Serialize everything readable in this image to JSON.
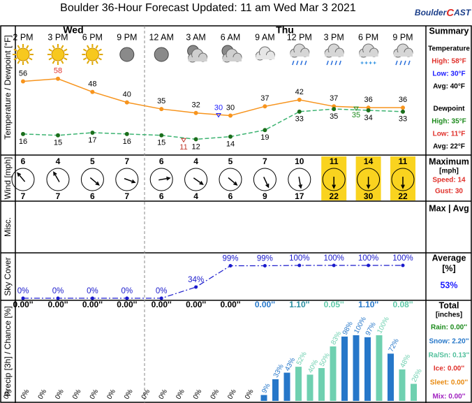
{
  "header": {
    "title": "Boulder 36-Hour Forecast Updated: 11 am Wed Mar 3 2021",
    "logo": [
      "Boulder",
      "C",
      "AST"
    ]
  },
  "summary": [
    {
      "heading": "Summary",
      "lines": [
        {
          "text": "Temperature",
          "color": "#000000"
        },
        {
          "text": "High: 58°F",
          "color": "#e0302a"
        },
        {
          "text": "Low: 30°F",
          "color": "#1a1aff"
        },
        {
          "text": "Avg: 40°F",
          "color": "#000000"
        },
        {
          "text": "Dewpoint",
          "color": "#000000"
        },
        {
          "text": "High: 35°F",
          "color": "#1b8a1b"
        },
        {
          "text": "Low: 11°F",
          "color": "#e0302a"
        },
        {
          "text": "Avg: 22°F",
          "color": "#000000"
        }
      ]
    },
    {
      "heading": "Maximum",
      "lines": [
        {
          "text": "[mph]",
          "color": "#000000"
        },
        {
          "text": "Speed: 14",
          "color": "#e0302a"
        },
        {
          "text": "Gust: 30",
          "color": "#e0302a"
        }
      ]
    },
    {
      "heading": "Max | Avg",
      "lines": []
    },
    {
      "heading": "Average",
      "lines": [
        {
          "text": "[%]",
          "color": "#000000"
        },
        {
          "text": "53%",
          "color": "#1a1aff"
        }
      ]
    },
    {
      "heading": "Total",
      "lines": [
        {
          "text": "[inches]",
          "color": "#000000"
        },
        {
          "text": "Rain: 0.00''",
          "color": "#1b8a1b"
        },
        {
          "text": "Snow: 2.20''",
          "color": "#2677c9"
        },
        {
          "text": "Ra/Sn: 0.13''",
          "color": "#4fbf9a"
        },
        {
          "text": "Ice: 0.00''",
          "color": "#e0302a"
        },
        {
          "text": "Sleet: 0.00''",
          "color": "#e88a10"
        },
        {
          "text": "Mix: 0.00''",
          "color": "#a020c0"
        }
      ]
    }
  ],
  "chart_data": [
    {
      "type": "line",
      "y_label": "Temperature / Dewpoint [°F]",
      "day_labels": [
        "Wed",
        "Thu"
      ],
      "categories": [
        "2 PM",
        "3 PM",
        "6 PM",
        "9 PM",
        "12 AM",
        "3 AM",
        "6 AM",
        "9 AM",
        "12 PM",
        "3 PM",
        "6 PM",
        "9 PM"
      ],
      "ylim": [
        0,
        86
      ],
      "series": [
        {
          "color": "#f7941d",
          "point_color": "#f7941d",
          "dash": false,
          "label_position": "above",
          "values": [
            56,
            58,
            48,
            40,
            35,
            32,
            30,
            37,
            42,
            37,
            36,
            36
          ],
          "label_colors": [
            "#000000",
            "#e0302a",
            "#000000",
            "#000000",
            "#000000",
            "#000000",
            "#000000",
            "#000000",
            "#000000",
            "#000000",
            "#000000",
            "#000000"
          ]
        },
        {
          "color": "#3cb371",
          "point_color": "#1b6e1b",
          "dash": true,
          "label_position": "below",
          "values": [
            16,
            15,
            17,
            16,
            15,
            12,
            14,
            19,
            33,
            35,
            34,
            33
          ],
          "label_colors": [
            "#000000",
            "#000000",
            "#000000",
            "#000000",
            "#000000",
            "#000000",
            "#000000",
            "#000000",
            "#000000",
            "#000000",
            "#000000",
            "#000000"
          ]
        }
      ],
      "annotations": [
        {
          "value": 30,
          "color": "#1a1aff"
        },
        {
          "value": 11,
          "color": "#c0392b"
        },
        {
          "value": 35,
          "color": "#1b8a1b"
        }
      ]
    },
    {
      "type": "wind",
      "y_label": "Wind [mph]",
      "speed": [
        6,
        4,
        5,
        7,
        6,
        4,
        5,
        7,
        10,
        11,
        14,
        11
      ],
      "gust": [
        7,
        7,
        6,
        7,
        6,
        4,
        6,
        9,
        17,
        22,
        30,
        22
      ],
      "direction": [
        320,
        330,
        130,
        110,
        80,
        125,
        130,
        155,
        170,
        180,
        180,
        180
      ],
      "highlight": [
        false,
        false,
        false,
        false,
        false,
        false,
        false,
        false,
        false,
        true,
        true,
        true
      ],
      "highlight_color": "#f9d31f"
    },
    {
      "type": "empty",
      "y_label": "Misc."
    },
    {
      "type": "line",
      "y_label": "Sky Cover",
      "color": "#1a1acc",
      "ylim": [
        0,
        100
      ],
      "values": [
        0,
        0,
        0,
        0,
        0,
        34,
        99,
        99,
        100,
        100,
        100,
        100
      ],
      "value_labels": [
        "0%",
        "0%",
        "0%",
        "0%",
        "0%",
        "34%",
        "99%",
        "99%",
        "100%",
        "100%",
        "100%",
        "100%"
      ]
    },
    {
      "type": "bar",
      "y_label": "Precip [3h] / Chance [%]",
      "ylim": [
        0,
        100
      ],
      "totals": {
        "values": [
          0,
          0,
          0,
          0,
          0,
          0,
          0,
          0,
          1.1,
          0.05,
          1.1,
          0.08
        ],
        "value_labels": [
          "0.00''",
          "0.00''",
          "0.00''",
          "0.00''",
          "0.00''",
          "0.00''",
          "0.00''",
          "0.00''",
          "1.10''",
          "0.05''",
          "1.10''",
          "0.08''"
        ],
        "colors": [
          "#000000",
          "#000000",
          "#000000",
          "#000000",
          "#000000",
          "#000000",
          "#000000",
          "#2677c9",
          "#2a8fa0",
          "#5fc9a8",
          "#2677c9",
          "#5fc9a8"
        ]
      },
      "values": [
        0,
        0,
        0,
        0,
        0,
        0,
        0,
        0,
        0,
        0,
        0,
        0,
        0,
        0,
        0,
        9,
        33,
        43,
        52,
        40,
        50,
        83,
        98,
        100,
        97,
        100,
        72,
        48,
        26
      ],
      "value_labels": [
        "0%",
        "0%",
        "0%",
        "0%",
        "0%",
        "0%",
        "0%",
        "0%",
        "0%",
        "0%",
        "0%",
        "0%",
        "0%",
        "0%",
        "0%",
        "9%",
        "33%",
        "43%",
        "52%",
        "40%",
        "50%",
        "83%",
        "98%",
        "100%",
        "97%",
        "100%",
        "72%",
        "48%",
        "26%"
      ],
      "colors": [
        "#000000",
        "#000000",
        "#000000",
        "#000000",
        "#000000",
        "#000000",
        "#000000",
        "#000000",
        "#000000",
        "#000000",
        "#000000",
        "#000000",
        "#000000",
        "#000000",
        "#000000",
        "#2677c9",
        "#2677c9",
        "#2677c9",
        "#6fd0b0",
        "#6fd0b0",
        "#6fd0b0",
        "#6fd0b0",
        "#2677c9",
        "#2677c9",
        "#2677c9",
        "#6fd0b0",
        "#2677c9",
        "#6fd0b0",
        "#6fd0b0"
      ]
    }
  ]
}
